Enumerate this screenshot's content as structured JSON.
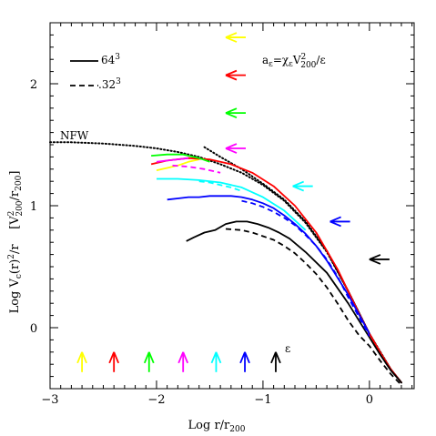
{
  "chart_data": {
    "type": "line",
    "xlabel_main": "Log r/r",
    "xlabel_sub": "200",
    "ylabel": [
      "Log V",
      "c",
      "(r)",
      "2",
      "/r    [V",
      "2",
      "200",
      "/r",
      "200",
      "]"
    ],
    "xlim": [
      -3,
      0.42
    ],
    "ylim": [
      -0.5,
      2.5
    ],
    "x_ticks": [
      -3,
      -2,
      -1,
      0
    ],
    "x_tick_labels": [
      "−3",
      "−2",
      "−1",
      "0"
    ],
    "y_ticks": [
      0,
      1,
      2
    ],
    "y_tick_labels": [
      "0",
      "1",
      "2"
    ],
    "legend": [
      {
        "label_base": "64",
        "label_sup": "3",
        "style": "solid"
      },
      {
        "label_base": ".32",
        "label_sup": "3",
        "style": "dashed"
      }
    ],
    "annotation_formula": [
      "a",
      "ε",
      "=χ",
      "ε",
      "V",
      "2",
      "200",
      "/ε"
    ],
    "nfw_label": "NFW",
    "epsilon_label": "ε",
    "colors": [
      "#ffff00",
      "#ff0000",
      "#00ff00",
      "#ff00ff",
      "#00ffff",
      "#0000ff",
      "#000000"
    ],
    "series": [
      {
        "name": "NFW",
        "color": "#000000",
        "style": "dotted",
        "x": [
          -3.0,
          -2.8,
          -2.5,
          -2.2,
          -2.0,
          -1.8,
          -1.6,
          -1.4,
          -1.2,
          -1.0,
          -0.8,
          -0.6,
          -0.4,
          -0.2,
          0.0,
          0.1,
          0.2,
          0.3
        ],
        "y": [
          1.52,
          1.52,
          1.51,
          1.49,
          1.47,
          1.44,
          1.4,
          1.34,
          1.27,
          1.17,
          1.04,
          0.86,
          0.62,
          0.3,
          -0.05,
          -0.2,
          -0.34,
          -0.45
        ]
      },
      {
        "color": "#000000",
        "style": "dotted",
        "x": [
          -1.55,
          -1.4,
          -1.2,
          -1.0,
          -0.8,
          -0.6,
          -0.4,
          -0.2,
          0.0,
          0.2,
          0.3
        ],
        "y": [
          1.48,
          1.4,
          1.3,
          1.18,
          1.05,
          0.87,
          0.63,
          0.3,
          -0.05,
          -0.34,
          -0.45
        ]
      },
      {
        "color": "#ffff00",
        "style": "solid",
        "x": [
          -2.0,
          -1.9,
          -1.8,
          -1.7,
          -1.6
        ],
        "y": [
          1.29,
          1.31,
          1.33,
          1.36,
          1.38
        ]
      },
      {
        "color": "#ff0000",
        "style": "solid",
        "x": [
          -2.05,
          -1.9,
          -1.7,
          -1.5,
          -1.3,
          -1.1,
          -0.9,
          -0.7,
          -0.5,
          -0.3,
          -0.1,
          0.0,
          0.1,
          0.2,
          0.3
        ],
        "y": [
          1.34,
          1.37,
          1.39,
          1.38,
          1.34,
          1.27,
          1.16,
          1.0,
          0.78,
          0.48,
          0.12,
          -0.05,
          -0.2,
          -0.34,
          -0.45
        ]
      },
      {
        "color": "#00ff00",
        "style": "solid",
        "x": [
          -2.05,
          -1.9,
          -1.75,
          -1.6,
          -1.5
        ],
        "y": [
          1.41,
          1.42,
          1.42,
          1.39,
          1.36
        ]
      },
      {
        "color": "#ff00ff",
        "style": "solid",
        "x": [
          -2.0,
          -1.9,
          -1.8,
          -1.7
        ],
        "y": [
          1.36,
          1.37,
          1.38,
          1.39
        ]
      },
      {
        "color": "#00ffff",
        "style": "solid",
        "x": [
          -2.0,
          -1.8,
          -1.6,
          -1.4,
          -1.2,
          -1.0,
          -0.8,
          -0.6
        ],
        "y": [
          1.22,
          1.22,
          1.21,
          1.19,
          1.15,
          1.07,
          0.96,
          0.8
        ]
      },
      {
        "color": "#0000ff",
        "style": "solid",
        "x": [
          -1.9,
          -1.8,
          -1.7,
          -1.6,
          -1.5,
          -1.4,
          -1.3,
          -1.2,
          -1.1,
          -1.0,
          -0.9,
          -0.8,
          -0.7,
          -0.6,
          -0.5,
          -0.4,
          -0.2,
          0.0
        ],
        "y": [
          1.05,
          1.06,
          1.07,
          1.07,
          1.08,
          1.08,
          1.08,
          1.07,
          1.05,
          1.02,
          0.98,
          0.92,
          0.85,
          0.77,
          0.67,
          0.55,
          0.27,
          -0.05
        ]
      },
      {
        "color": "#000000",
        "style": "solid",
        "x": [
          -1.72,
          -1.65,
          -1.55,
          -1.45,
          -1.35,
          -1.25,
          -1.15,
          -1.05,
          -0.95,
          -0.85,
          -0.75,
          -0.6,
          -0.4,
          -0.2,
          0.0,
          0.1,
          0.2,
          0.3
        ],
        "y": [
          0.71,
          0.74,
          0.78,
          0.8,
          0.85,
          0.87,
          0.87,
          0.85,
          0.82,
          0.78,
          0.73,
          0.62,
          0.45,
          0.2,
          -0.08,
          -0.22,
          -0.35,
          -0.45
        ]
      },
      {
        "color": "#ff00ff",
        "style": "dashed",
        "x": [
          -1.85,
          -1.7,
          -1.55,
          -1.4
        ],
        "y": [
          1.33,
          1.32,
          1.3,
          1.27
        ]
      },
      {
        "color": "#00ffff",
        "style": "dashed",
        "x": [
          -1.6,
          -1.5,
          -1.4,
          -1.3,
          -1.2
        ],
        "y": [
          1.2,
          1.19,
          1.17,
          1.15,
          1.12
        ]
      },
      {
        "color": "#0000ff",
        "style": "dashed",
        "x": [
          -1.2,
          -1.1,
          -1.0,
          -0.9,
          -0.8,
          -0.7,
          -0.6,
          -0.5,
          -0.4,
          -0.3,
          -0.2,
          -0.1,
          0.0
        ],
        "y": [
          1.04,
          1.02,
          0.99,
          0.95,
          0.9,
          0.84,
          0.76,
          0.67,
          0.56,
          0.42,
          0.25,
          0.09,
          -0.07
        ]
      },
      {
        "color": "#000000",
        "style": "dashed",
        "x": [
          -1.35,
          -1.2,
          -1.1,
          -1.0,
          -0.9,
          -0.8,
          -0.7,
          -0.6,
          -0.5,
          -0.4,
          -0.3,
          -0.2,
          -0.1,
          0.0,
          0.1,
          0.2,
          0.3
        ],
        "y": [
          0.81,
          0.8,
          0.78,
          0.75,
          0.72,
          0.67,
          0.61,
          0.53,
          0.44,
          0.33,
          0.2,
          0.06,
          -0.06,
          -0.15,
          -0.27,
          -0.38,
          -0.47
        ]
      }
    ],
    "epsilon_arrows": [
      {
        "color": "#ffff00",
        "x": -1.35,
        "y": 2.38
      },
      {
        "color": "#ff0000",
        "x": -1.35,
        "y": 2.07
      },
      {
        "color": "#00ff00",
        "x": -1.35,
        "y": 1.76
      },
      {
        "color": "#ff00ff",
        "x": -1.35,
        "y": 1.47
      },
      {
        "color": "#00ffff",
        "x": -0.72,
        "y": 1.16
      },
      {
        "color": "#0000ff",
        "x": -0.37,
        "y": 0.87
      },
      {
        "color": "#000000",
        "x": 0.0,
        "y": 0.56
      }
    ],
    "bottom_arrows": [
      {
        "color": "#ffff00",
        "x": -2.7
      },
      {
        "color": "#ff0000",
        "x": -2.4
      },
      {
        "color": "#00ff00",
        "x": -2.07
      },
      {
        "color": "#ff00ff",
        "x": -1.75
      },
      {
        "color": "#00ffff",
        "x": -1.44
      },
      {
        "color": "#0000ff",
        "x": -1.17
      },
      {
        "color": "#000000",
        "x": -0.88
      }
    ],
    "bottom_arrow_y": -0.2
  }
}
